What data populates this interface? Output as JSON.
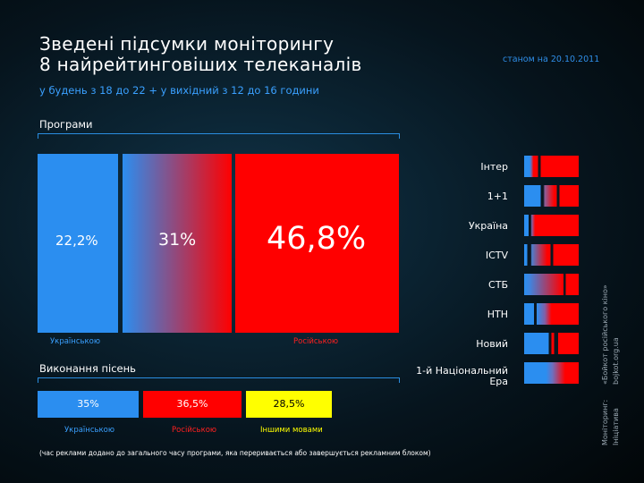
{
  "title_line1": "Зведені підсумки моніторингу",
  "title_line2": "8 найрейтинговіших телеканалів",
  "subtitle": "у будень з 18 до 22 + у вихідний з 12 до 16 години",
  "as_of": "станом на 20.10.2011",
  "colors": {
    "ukrainian": "#2b8ef0",
    "russian": "#ff0000",
    "other": "#ffff00",
    "accent": "#3aa0ff"
  },
  "chart_data": [
    {
      "type": "bar",
      "title": "Програми",
      "categories": [
        "Українською",
        "",
        "Російською"
      ],
      "values": [
        22.2,
        31,
        46.8
      ],
      "labels": [
        "22,2%",
        "31%",
        "46,8%"
      ]
    },
    {
      "type": "bar",
      "title": "Виконання пісень",
      "categories": [
        "Українською",
        "Російською",
        "Іншими мовами"
      ],
      "values": [
        35,
        36.5,
        28.5
      ],
      "labels": [
        "35%",
        "36,5%",
        "28,5%"
      ]
    },
    {
      "type": "bar",
      "categories": [
        "Інтер",
        "1+1",
        "Україна",
        "ICTV",
        "СТБ",
        "НТН",
        "Новий",
        "1-й Національний Ера"
      ]
    }
  ],
  "programs": {
    "label": "Програми",
    "pcts": [
      "22,2%",
      "31%",
      "46,8%"
    ],
    "cap_ukr": "Українською",
    "cap_rus": "Російською"
  },
  "songs": {
    "label": "Виконання пісень",
    "pcts": [
      "35%",
      "36,5%",
      "28,5%"
    ],
    "caps": [
      "Українською",
      "Російською",
      "Іншими мовами"
    ]
  },
  "channels": [
    "Інтер",
    "1+1",
    "Україна",
    "ICTV",
    "СТБ",
    "НТН",
    "Новий",
    "1-й Національний Ера"
  ],
  "footnote": "(час реклами додано до загального часу програми, яка переривається або завершується рекламним блоком)",
  "side_note_1": "Моніторинг:",
  "side_note_2": "Ініціатива",
  "side_note_3": "«Бойкот російського кіно»",
  "side_note_4": "bojkot.org.ua"
}
